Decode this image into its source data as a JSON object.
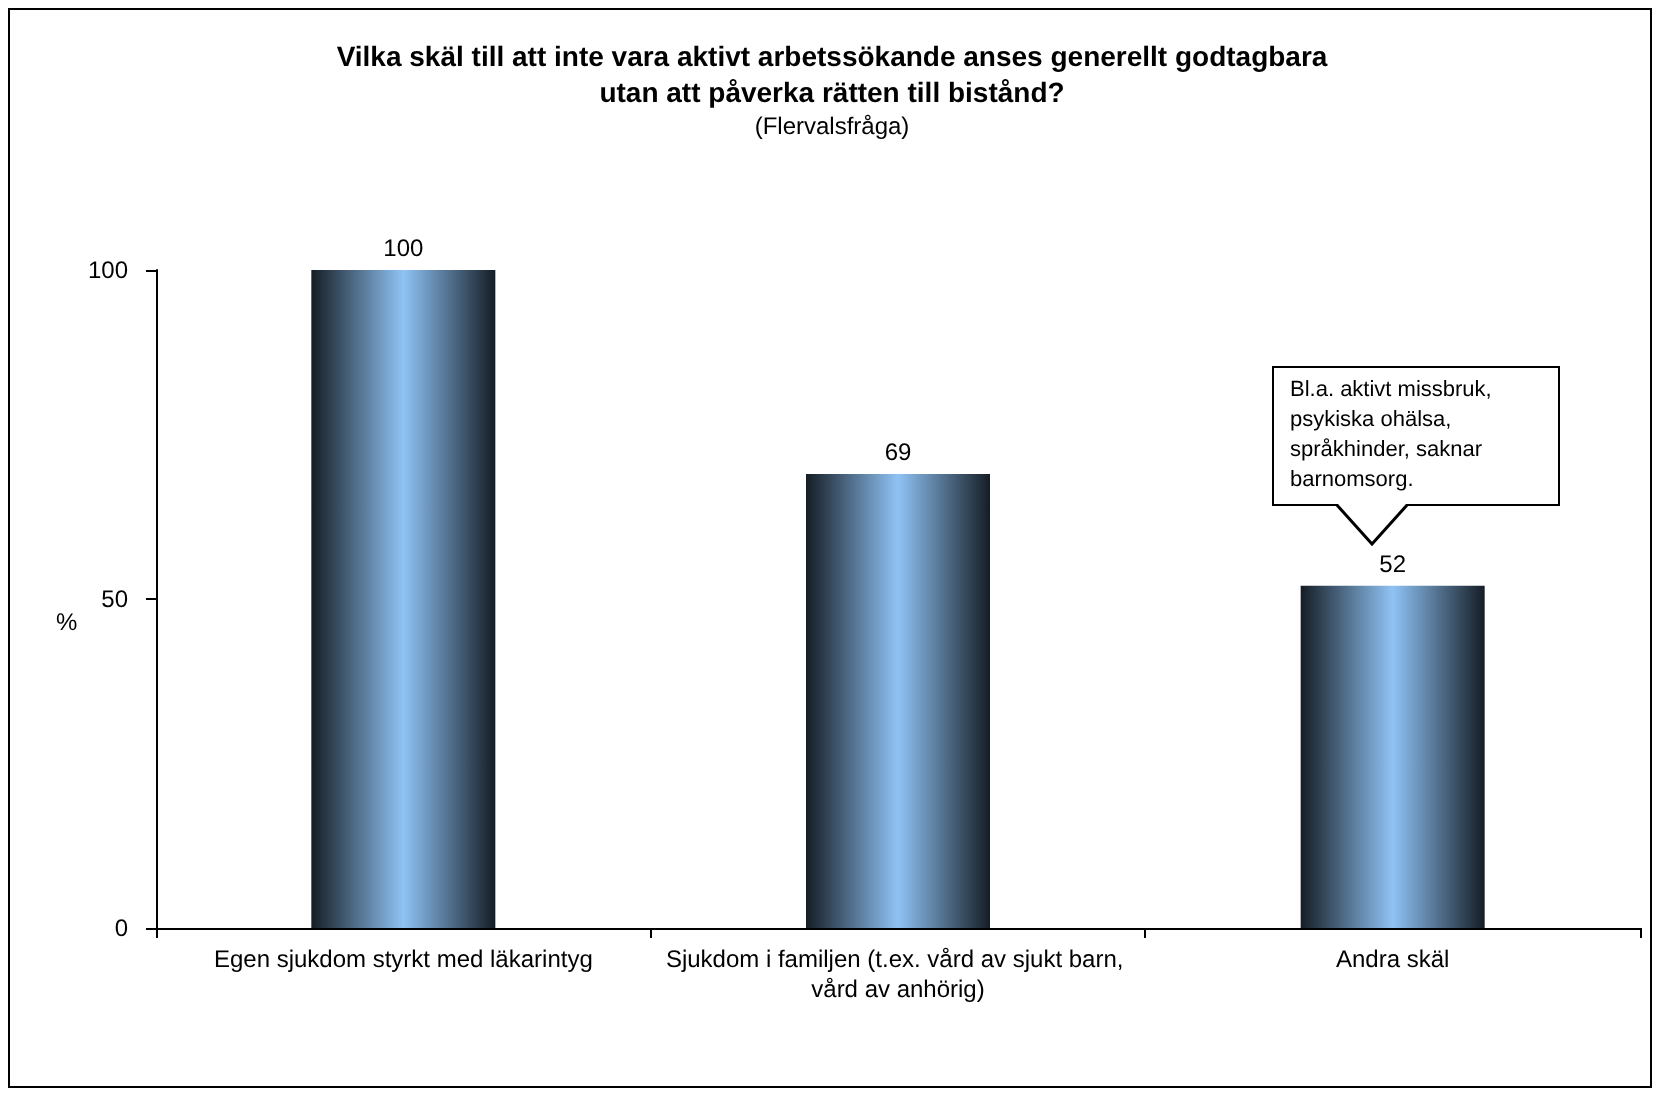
{
  "chart_data": {
    "type": "bar",
    "title": "Vilka skäl till att inte vara aktivt arbetssökande anses generellt godtagbara\nutan att påverka rätten till bistånd?",
    "subtitle": "(Flervalsfråga)",
    "ylabel": "%",
    "categories": [
      "Egen sjukdom styrkt med läkarintyg",
      "Sjukdom i familjen (t.ex. vård av sjukt barn, vård av anhörig)",
      "Andra skäl"
    ],
    "values": [
      100,
      69,
      52
    ],
    "color": "#8fc3f5",
    "ylim": [
      0,
      100
    ],
    "yticks": [
      0,
      50,
      100
    ],
    "grid": false,
    "data_labels": true,
    "annotations": [
      "Bl.a. aktivt missbruk, psykiska ohälsa, språkhinder, saknar barnomsorg."
    ]
  }
}
